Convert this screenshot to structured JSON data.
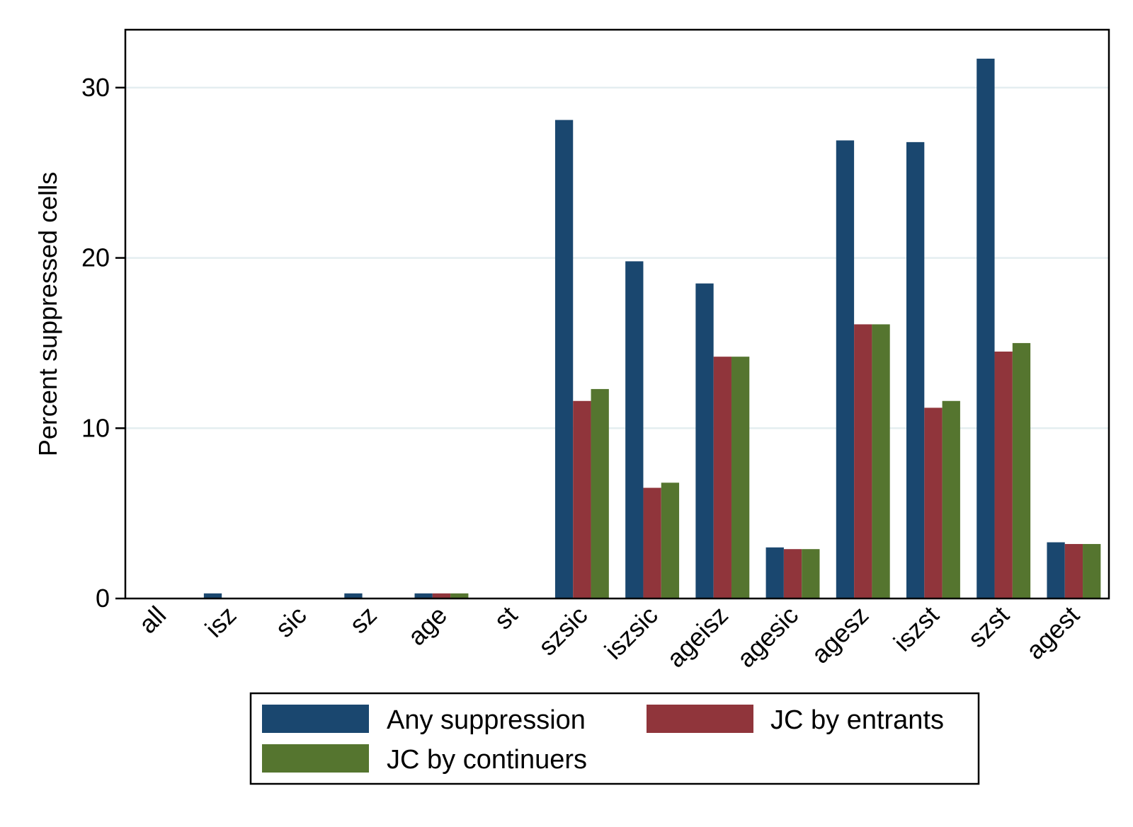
{
  "chart_data": {
    "type": "bar",
    "title": "",
    "xlabel": "",
    "ylabel": "Percent suppressed cells",
    "ylim": [
      0,
      33.4
    ],
    "yticks": [
      0,
      10,
      20,
      30
    ],
    "grid": true,
    "legend_position": "bottom",
    "categories": [
      "all",
      "isz",
      "sic",
      "sz",
      "age",
      "st",
      "szsic",
      "iszsic",
      "ageisz",
      "agesic",
      "agesz",
      "iszst",
      "szst",
      "agest"
    ],
    "series": [
      {
        "name": "Any suppression",
        "color": "#1a476f",
        "values": [
          0,
          0.3,
          0,
          0.3,
          0.3,
          0,
          28.1,
          19.8,
          18.5,
          3.0,
          26.9,
          26.8,
          31.7,
          3.3
        ]
      },
      {
        "name": "JC by entrants",
        "color": "#90353b",
        "values": [
          0,
          0,
          0,
          0,
          0.3,
          0,
          11.6,
          6.5,
          14.2,
          2.9,
          16.1,
          11.2,
          14.5,
          3.2
        ]
      },
      {
        "name": "JC by continuers",
        "color": "#55752f",
        "values": [
          0,
          0,
          0,
          0,
          0.3,
          0,
          12.3,
          6.8,
          14.2,
          2.9,
          16.1,
          11.6,
          15.0,
          3.2
        ]
      }
    ]
  }
}
